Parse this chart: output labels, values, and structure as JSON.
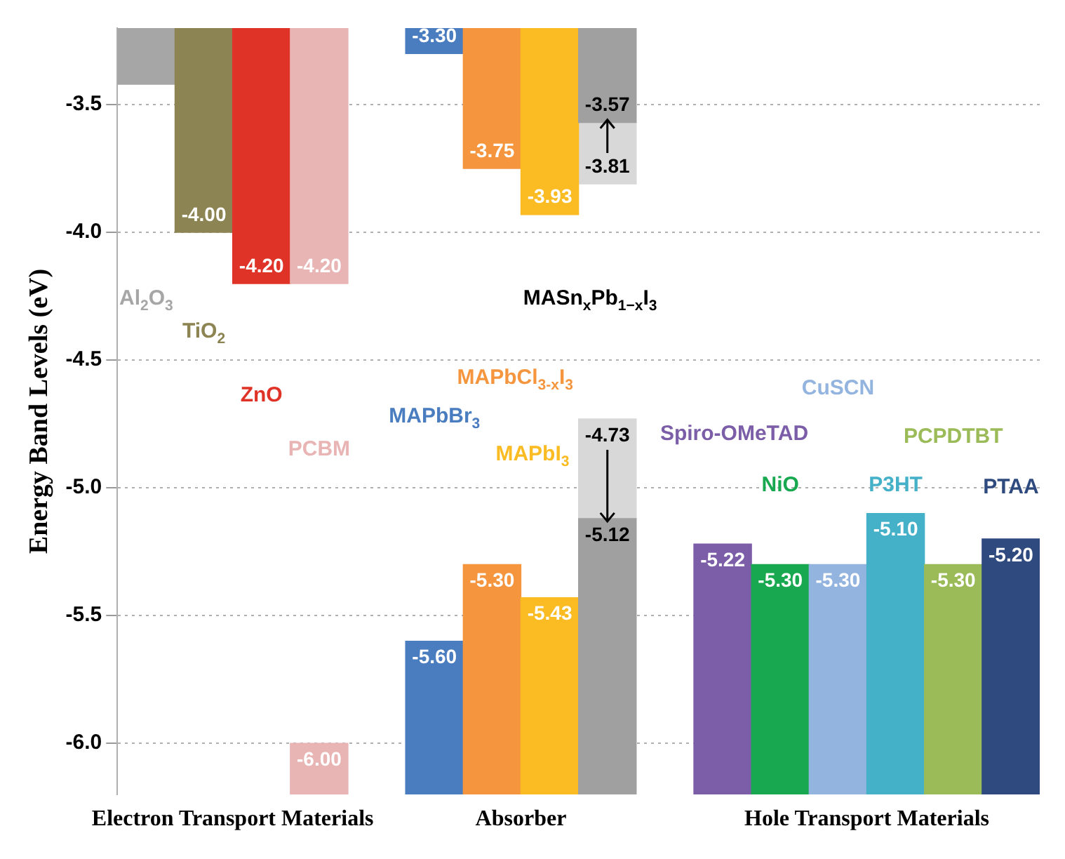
{
  "chart_data": {
    "type": "bar",
    "ylabel": "Energy Band Levels (eV)",
    "categories": [
      "Al$_{2}$O$_{3}$",
      "TiO$_{2}$",
      "ZnO",
      "PCBM",
      null,
      "MAPbBr$_{3}$",
      "MAPbCl$_{3-x}$I$_{3}$",
      "MAPbI$_{3}$",
      "MASn$_{x}$Pb$_{1−x}$I$_{3}$",
      null,
      "Spiro-OMeTAD",
      "NiO",
      "CuSCN",
      "P3HT",
      "PCPDTBT",
      "PTAA"
    ],
    "series": [
      {
        "colors": [
          "#a6a6a6",
          "#8c8452",
          "#e03327",
          "#e8b4b4",
          null,
          "#4a7cc0",
          "#f5963f",
          "#fbbb22",
          "#a0a0a0",
          null,
          null,
          null,
          null,
          null,
          null,
          null
        ],
        "base": [
          -3.2,
          -3.2,
          -3.2,
          -3.2,
          null,
          -3.2,
          -3.2,
          -3.2,
          -3.2,
          null,
          null,
          null,
          null,
          null,
          null,
          null
        ],
        "values": [
          -0.22,
          -0.8,
          -1.0,
          -1.0,
          null,
          -0.1,
          -0.55,
          -0.73,
          -0.37,
          null,
          null,
          null,
          null,
          null,
          null,
          null
        ],
        "value_labels": [
          null,
          "-4.00",
          "-4.20",
          "-4.20",
          null,
          "-3.30",
          "-3.75",
          "-3.93",
          "-3.57",
          null,
          null,
          null,
          null,
          null,
          null,
          null
        ]
      },
      {
        "colors": [
          null,
          null,
          null,
          null,
          null,
          null,
          null,
          null,
          "#d8d8d8",
          null,
          null,
          null,
          null,
          null,
          null,
          null
        ],
        "base": [
          null,
          null,
          null,
          null,
          null,
          null,
          null,
          null,
          -3.57,
          null,
          null,
          null,
          null,
          null,
          null,
          null
        ],
        "values": [
          null,
          null,
          null,
          null,
          null,
          null,
          null,
          null,
          -0.24,
          null,
          null,
          null,
          null,
          null,
          null,
          null
        ],
        "value_labels": [
          null,
          null,
          null,
          null,
          null,
          null,
          null,
          null,
          "-3.81",
          null,
          null,
          null,
          null,
          null,
          null,
          null
        ]
      },
      {
        "colors": [
          null,
          null,
          null,
          "#e8b4b4",
          null,
          "#4a7cc0",
          "#f5963f",
          "#fbbb22",
          "#a0a0a0",
          null,
          "#7b5ea7",
          "#18a84f",
          "#93b4de",
          "#45b1c9",
          "#9bbb59",
          "#2e4a7e"
        ],
        "base": [
          null,
          null,
          null,
          -6.2,
          null,
          -6.2,
          -6.2,
          -6.2,
          -6.2,
          null,
          -6.2,
          -6.2,
          -6.2,
          -6.2,
          -6.2,
          -6.2
        ],
        "values": [
          null,
          null,
          null,
          0.2,
          null,
          0.6,
          0.9,
          0.77,
          1.08,
          null,
          0.98,
          0.9,
          0.9,
          1.1,
          0.9,
          1.0
        ],
        "value_labels": [
          null,
          null,
          null,
          "-6.00",
          null,
          "-5.60",
          "-5.30",
          "-5.43",
          "-5.12",
          null,
          "-5.22",
          "-5.30",
          "-5.30",
          "-5.10",
          "-5.30",
          "-5.20"
        ]
      },
      {
        "colors": [
          null,
          null,
          null,
          null,
          null,
          null,
          null,
          null,
          "#d8d8d8",
          null,
          null,
          null,
          null,
          null,
          null,
          null
        ],
        "base": [
          null,
          null,
          null,
          null,
          null,
          null,
          null,
          null,
          -5.12,
          null,
          null,
          null,
          null,
          null,
          null,
          null
        ],
        "values": [
          null,
          null,
          null,
          null,
          null,
          null,
          null,
          null,
          0.39,
          null,
          null,
          null,
          null,
          null,
          null,
          null
        ],
        "value_labels": [
          null,
          null,
          null,
          null,
          null,
          null,
          null,
          null,
          "-4.73",
          null,
          null,
          null,
          null,
          null,
          null,
          null
        ]
      }
    ],
    "ylim": [
      -6.2,
      -3.2
    ],
    "yticks": [
      {
        "value": -3.5,
        "label": "-3.5"
      },
      {
        "value": -4.0,
        "label": "-4.0"
      },
      {
        "value": -4.5,
        "label": "-4.5"
      },
      {
        "value": -5.0,
        "label": "-5.0"
      },
      {
        "value": -5.5,
        "label": "-5.5"
      },
      {
        "value": -6.0,
        "label": "-6.0"
      }
    ],
    "annotations": [
      "Electron Transport Materials",
      "Absorber",
      "Hole Transport Materials"
    ],
    "grid": "y",
    "legend": false,
    "tick_labels": "y"
  }
}
